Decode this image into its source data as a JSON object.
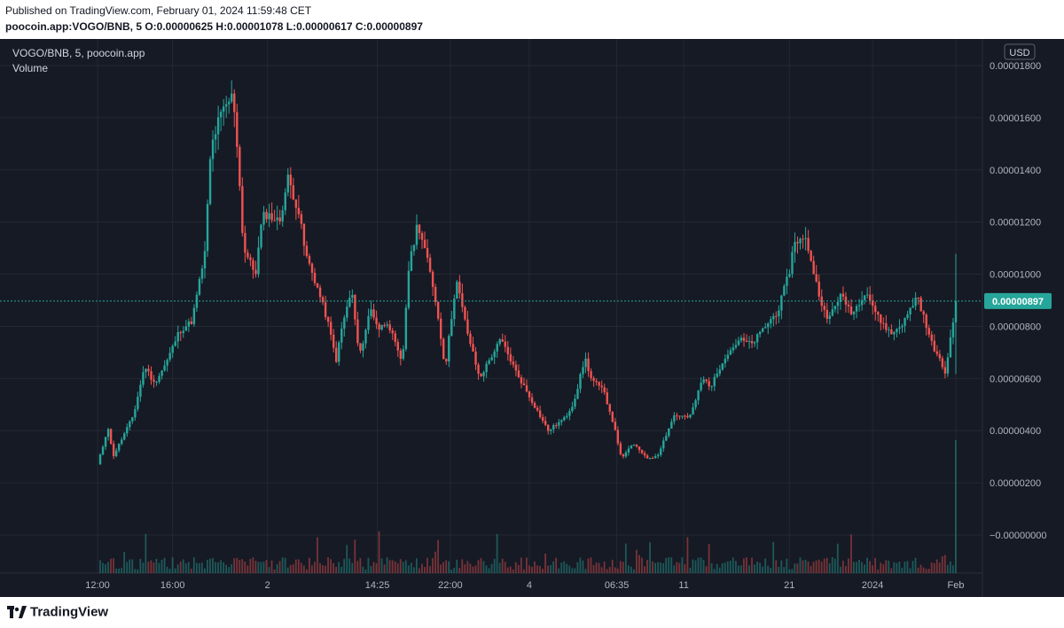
{
  "header": {
    "published": "Published on TradingView.com, February 01, 2024 11:59:48 CET",
    "ohlc": "poocoin.app:VOGO/BNB, 5  O:0.00000625  H:0.00001078  L:0.00000617  C:0.00000897"
  },
  "legend": {
    "symbol": "VOGO/BNB, 5, poocoin.app",
    "volume": "Volume"
  },
  "footer": {
    "brand": "TradingView"
  },
  "colors": {
    "background": "#161a25",
    "grid": "#242832",
    "up": "#26a69a",
    "down": "#ef5350",
    "text": "#b2b5be"
  },
  "chart_data": {
    "type": "candlestick",
    "currency": "USD",
    "last_price_label": "0.00000897",
    "last_price": 8.97e-06,
    "open": 6.25e-06,
    "high": 1.078e-05,
    "low": 6.17e-06,
    "close": 8.97e-06,
    "y_ticks": [
      {
        "value": 1.8e-05,
        "label": "0.00001800"
      },
      {
        "value": 1.6e-05,
        "label": "0.00001600"
      },
      {
        "value": 1.4e-05,
        "label": "0.00001400"
      },
      {
        "value": 1.2e-05,
        "label": "0.00001200"
      },
      {
        "value": 1e-05,
        "label": "0.00001000"
      },
      {
        "value": 8e-06,
        "label": "0.00000800"
      },
      {
        "value": 6e-06,
        "label": "0.00000600"
      },
      {
        "value": 4e-06,
        "label": "0.00000400"
      },
      {
        "value": 2e-06,
        "label": "0.00000200"
      },
      {
        "value": 0,
        "label": "−0.00000000"
      }
    ],
    "x_ticks": [
      {
        "label": "12:00",
        "pos": 0.0
      },
      {
        "label": "16:00",
        "pos": 0.0875
      },
      {
        "label": "2",
        "pos": 0.198
      },
      {
        "label": "14:25",
        "pos": 0.326
      },
      {
        "label": "22:00",
        "pos": 0.411
      },
      {
        "label": "4",
        "pos": 0.503
      },
      {
        "label": "06:35",
        "pos": 0.605
      },
      {
        "label": "11",
        "pos": 0.683
      },
      {
        "label": "21",
        "pos": 0.806
      },
      {
        "label": "2024",
        "pos": 0.903
      },
      {
        "label": "Feb",
        "pos": 1.0
      }
    ],
    "price_path": [
      [
        0.0,
        2.7e-06
      ],
      [
        0.008,
        3.6e-06
      ],
      [
        0.012,
        4.2e-06
      ],
      [
        0.018,
        3e-06
      ],
      [
        0.03,
        3.8e-06
      ],
      [
        0.042,
        4.6e-06
      ],
      [
        0.055,
        6.5e-06
      ],
      [
        0.066,
        5.8e-06
      ],
      [
        0.08,
        6.6e-06
      ],
      [
        0.095,
        7.8e-06
      ],
      [
        0.11,
        8.2e-06
      ],
      [
        0.125,
        1.08e-05
      ],
      [
        0.132,
        1.48e-05
      ],
      [
        0.142,
        1.6e-05
      ],
      [
        0.158,
        1.69e-05
      ],
      [
        0.163,
        1.48e-05
      ],
      [
        0.17,
        1.1e-05
      ],
      [
        0.184,
        1e-05
      ],
      [
        0.192,
        1.22e-05
      ],
      [
        0.198,
        1.23e-05
      ],
      [
        0.212,
        1.2e-05
      ],
      [
        0.222,
        1.37e-05
      ],
      [
        0.235,
        1.23e-05
      ],
      [
        0.242,
        1.08e-05
      ],
      [
        0.255,
        9.6e-06
      ],
      [
        0.268,
        8.2e-06
      ],
      [
        0.278,
        6.7e-06
      ],
      [
        0.285,
        8e-06
      ],
      [
        0.296,
        9.4e-06
      ],
      [
        0.305,
        6.8e-06
      ],
      [
        0.318,
        8.7e-06
      ],
      [
        0.328,
        7.9e-06
      ],
      [
        0.338,
        8.2e-06
      ],
      [
        0.355,
        6.5e-06
      ],
      [
        0.362,
        1.01e-05
      ],
      [
        0.373,
        1.2e-05
      ],
      [
        0.381,
        1.1e-05
      ],
      [
        0.393,
        9.2e-06
      ],
      [
        0.405,
        6.4e-06
      ],
      [
        0.418,
        9.8e-06
      ],
      [
        0.43,
        7.9e-06
      ],
      [
        0.445,
        6e-06
      ],
      [
        0.458,
        6.8e-06
      ],
      [
        0.47,
        7.5e-06
      ],
      [
        0.487,
        6.3e-06
      ],
      [
        0.505,
        5.2e-06
      ],
      [
        0.525,
        4e-06
      ],
      [
        0.545,
        4.5e-06
      ],
      [
        0.555,
        5.1e-06
      ],
      [
        0.568,
        6.8e-06
      ],
      [
        0.575,
        6e-06
      ],
      [
        0.59,
        5.5e-06
      ],
      [
        0.6,
        4.4e-06
      ],
      [
        0.611,
        2.9e-06
      ],
      [
        0.623,
        3.5e-06
      ],
      [
        0.643,
        2.9e-06
      ],
      [
        0.653,
        3.1e-06
      ],
      [
        0.672,
        4.6e-06
      ],
      [
        0.69,
        4.5e-06
      ],
      [
        0.705,
        6e-06
      ],
      [
        0.715,
        5.7e-06
      ],
      [
        0.73,
        6.8e-06
      ],
      [
        0.748,
        7.5e-06
      ],
      [
        0.762,
        7.3e-06
      ],
      [
        0.778,
        8e-06
      ],
      [
        0.793,
        8.6e-06
      ],
      [
        0.806,
        1.01e-05
      ],
      [
        0.812,
        1.13e-05
      ],
      [
        0.826,
        1.13e-05
      ],
      [
        0.837,
        9.7e-06
      ],
      [
        0.85,
        8.2e-06
      ],
      [
        0.865,
        9.2e-06
      ],
      [
        0.88,
        8.5e-06
      ],
      [
        0.895,
        9.4e-06
      ],
      [
        0.91,
        8.3e-06
      ],
      [
        0.925,
        7.7e-06
      ],
      [
        0.94,
        8.2e-06
      ],
      [
        0.955,
        9.2e-06
      ],
      [
        0.97,
        7.5e-06
      ],
      [
        0.988,
        6.2e-06
      ],
      [
        1.0,
        9e-06
      ]
    ]
  }
}
